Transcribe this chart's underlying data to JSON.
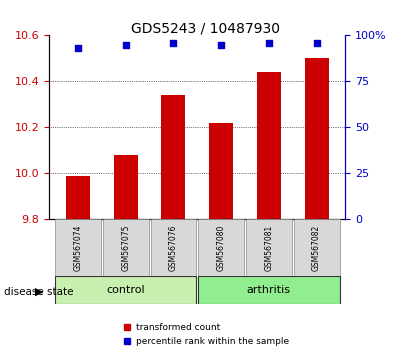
{
  "title": "GDS5243 / 10487930",
  "samples": [
    "GSM567074",
    "GSM567075",
    "GSM567076",
    "GSM567080",
    "GSM567081",
    "GSM567082"
  ],
  "red_values": [
    9.99,
    10.08,
    10.34,
    10.22,
    10.44,
    10.5
  ],
  "blue_values": [
    93,
    95,
    96,
    95,
    96,
    96
  ],
  "groups": [
    {
      "label": "control",
      "indices": [
        0,
        1,
        2
      ],
      "color": "#c8f0b0"
    },
    {
      "label": "arthritis",
      "indices": [
        3,
        4,
        5
      ],
      "color": "#90ee90"
    }
  ],
  "ylim_left": [
    9.8,
    10.6
  ],
  "ylim_right": [
    0,
    100
  ],
  "yticks_left": [
    9.8,
    10.0,
    10.2,
    10.4,
    10.6
  ],
  "yticks_right": [
    0,
    25,
    50,
    75,
    100
  ],
  "ytick_labels_right": [
    "0",
    "25",
    "50",
    "75",
    "100%"
  ],
  "bar_color": "#cc0000",
  "dot_color": "#0000cc",
  "bar_width": 0.5,
  "grid_color": "#000000",
  "background_color": "#ffffff",
  "tick_label_gray": "#c8c8c8",
  "disease_state_label": "disease state",
  "legend_red": "transformed count",
  "legend_blue": "percentile rank within the sample"
}
